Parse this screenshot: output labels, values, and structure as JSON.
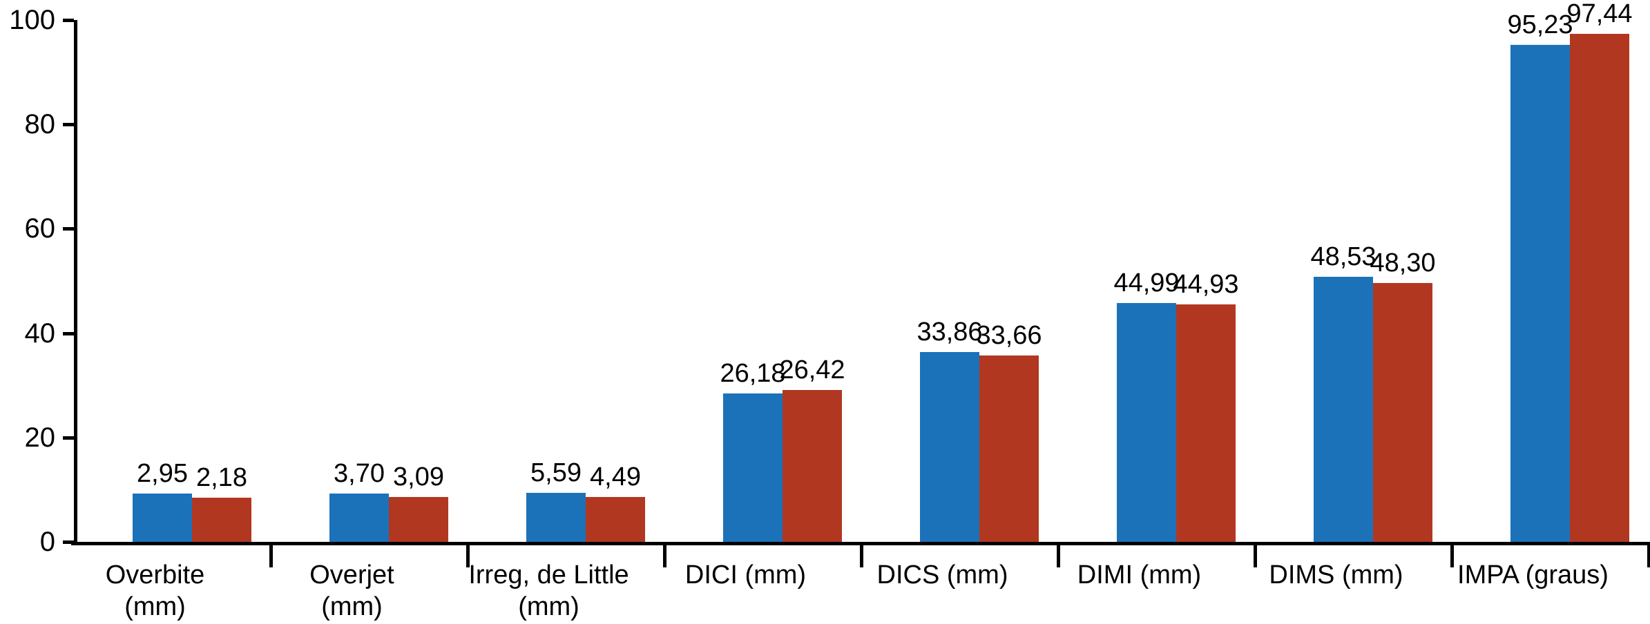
{
  "chart_data": {
    "type": "bar",
    "title": "",
    "categories": [
      "Overbite\n(mm)",
      "Overjet\n(mm)",
      "Irreg, de Little\n(mm)",
      "DICI (mm)",
      "DICS (mm)",
      "DIMI (mm)",
      "DIMS (mm)",
      "IMPA (graus)"
    ],
    "series": [
      {
        "name": "series-blue",
        "color": "#1C72B8",
        "values": [
          2.95,
          3.7,
          5.59,
          26.18,
          33.86,
          44.99,
          48.53,
          95.23
        ],
        "value_labels": [
          "2,95",
          "3,70",
          "5,59",
          "26,18",
          "33,86",
          "44,99",
          "48,53",
          "95,23"
        ],
        "bar_heights_as_drawn": [
          9.3,
          9.3,
          9.4,
          28.4,
          36.4,
          45.8,
          50.8,
          95.2
        ]
      },
      {
        "name": "series-red",
        "color": "#B23721",
        "values": [
          2.18,
          3.09,
          4.49,
          26.42,
          33.66,
          44.93,
          48.3,
          97.44
        ],
        "value_labels": [
          "2,18",
          "3,09",
          "4,49",
          "26,42",
          "33,66",
          "44,93",
          "48,30",
          "97,44"
        ],
        "bar_heights_as_drawn": [
          8.5,
          8.6,
          8.6,
          29.1,
          35.7,
          45.5,
          49.6,
          97.4
        ]
      }
    ],
    "y_axis": {
      "tick_labels": [
        "0",
        "20",
        "40",
        "60",
        "80",
        "100"
      ],
      "ticks": [
        0,
        20,
        40,
        60,
        80,
        100
      ],
      "range": [
        0,
        100
      ]
    },
    "x_axis": {
      "boundary_ticks": true
    },
    "legend": "none",
    "grid": false,
    "background_color": "#ffffff",
    "axis_color": "#000000",
    "text_color": "#000000"
  }
}
